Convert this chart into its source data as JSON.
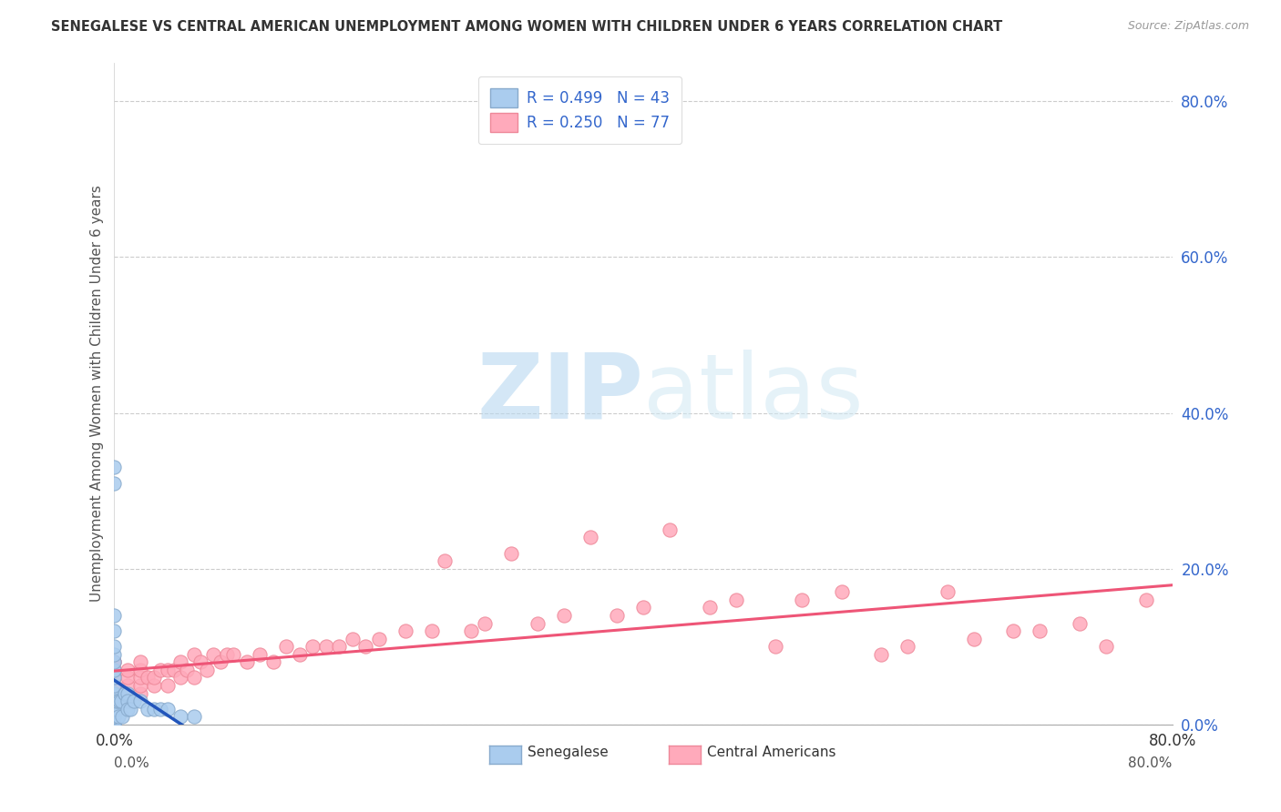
{
  "title": "SENEGALESE VS CENTRAL AMERICAN UNEMPLOYMENT AMONG WOMEN WITH CHILDREN UNDER 6 YEARS CORRELATION CHART",
  "source": "Source: ZipAtlas.com",
  "ylabel": "Unemployment Among Women with Children Under 6 years",
  "xmin": 0.0,
  "xmax": 0.8,
  "ymin": 0.0,
  "ymax": 0.85,
  "yticks": [
    0.0,
    0.2,
    0.4,
    0.6,
    0.8
  ],
  "ytick_labels": [
    "0.0%",
    "20.0%",
    "40.0%",
    "60.0%",
    "80.0%"
  ],
  "background_color": "#ffffff",
  "senegalese_color": "#aaccee",
  "senegalese_edge": "#88aacc",
  "central_american_color": "#ffaabb",
  "central_american_edge": "#ee8899",
  "trend_senegalese_color": "#2255bb",
  "trend_central_american_color": "#ee5577",
  "watermark_color": "#cce4f5",
  "grid_color": "#cccccc",
  "senegalese_x": [
    0.0,
    0.0,
    0.0,
    0.0,
    0.0,
    0.0,
    0.0,
    0.0,
    0.0,
    0.0,
    0.0,
    0.0,
    0.0,
    0.0,
    0.0,
    0.0,
    0.0,
    0.0,
    0.0,
    0.0,
    0.0,
    0.0,
    0.0,
    0.002,
    0.002,
    0.003,
    0.004,
    0.005,
    0.006,
    0.008,
    0.008,
    0.01,
    0.01,
    0.01,
    0.012,
    0.015,
    0.02,
    0.025,
    0.03,
    0.035,
    0.04,
    0.05,
    0.06
  ],
  "senegalese_y": [
    0.0,
    0.0,
    0.0,
    0.0,
    0.01,
    0.01,
    0.01,
    0.02,
    0.02,
    0.03,
    0.03,
    0.04,
    0.04,
    0.05,
    0.06,
    0.07,
    0.08,
    0.09,
    0.1,
    0.12,
    0.14,
    0.31,
    0.33,
    0.02,
    0.03,
    0.01,
    0.03,
    0.03,
    0.01,
    0.04,
    0.04,
    0.04,
    0.03,
    0.02,
    0.02,
    0.03,
    0.03,
    0.02,
    0.02,
    0.02,
    0.02,
    0.01,
    0.01
  ],
  "central_x": [
    0.0,
    0.0,
    0.0,
    0.0,
    0.0,
    0.0,
    0.0,
    0.0,
    0.0,
    0.0,
    0.0,
    0.0,
    0.01,
    0.01,
    0.01,
    0.01,
    0.01,
    0.02,
    0.02,
    0.02,
    0.02,
    0.02,
    0.025,
    0.03,
    0.03,
    0.035,
    0.04,
    0.04,
    0.045,
    0.05,
    0.05,
    0.055,
    0.06,
    0.06,
    0.065,
    0.07,
    0.075,
    0.08,
    0.085,
    0.09,
    0.1,
    0.11,
    0.12,
    0.13,
    0.14,
    0.15,
    0.16,
    0.17,
    0.18,
    0.19,
    0.2,
    0.22,
    0.24,
    0.25,
    0.27,
    0.28,
    0.3,
    0.32,
    0.34,
    0.36,
    0.38,
    0.4,
    0.42,
    0.45,
    0.47,
    0.5,
    0.52,
    0.55,
    0.58,
    0.6,
    0.63,
    0.65,
    0.68,
    0.7,
    0.73,
    0.75,
    0.78
  ],
  "central_y": [
    0.03,
    0.03,
    0.04,
    0.04,
    0.05,
    0.05,
    0.06,
    0.06,
    0.07,
    0.07,
    0.08,
    0.08,
    0.03,
    0.04,
    0.05,
    0.06,
    0.07,
    0.04,
    0.05,
    0.06,
    0.07,
    0.08,
    0.06,
    0.05,
    0.06,
    0.07,
    0.05,
    0.07,
    0.07,
    0.06,
    0.08,
    0.07,
    0.06,
    0.09,
    0.08,
    0.07,
    0.09,
    0.08,
    0.09,
    0.09,
    0.08,
    0.09,
    0.08,
    0.1,
    0.09,
    0.1,
    0.1,
    0.1,
    0.11,
    0.1,
    0.11,
    0.12,
    0.12,
    0.21,
    0.12,
    0.13,
    0.22,
    0.13,
    0.14,
    0.24,
    0.14,
    0.15,
    0.25,
    0.15,
    0.16,
    0.1,
    0.16,
    0.17,
    0.09,
    0.1,
    0.17,
    0.11,
    0.12,
    0.12,
    0.13,
    0.1,
    0.16
  ]
}
